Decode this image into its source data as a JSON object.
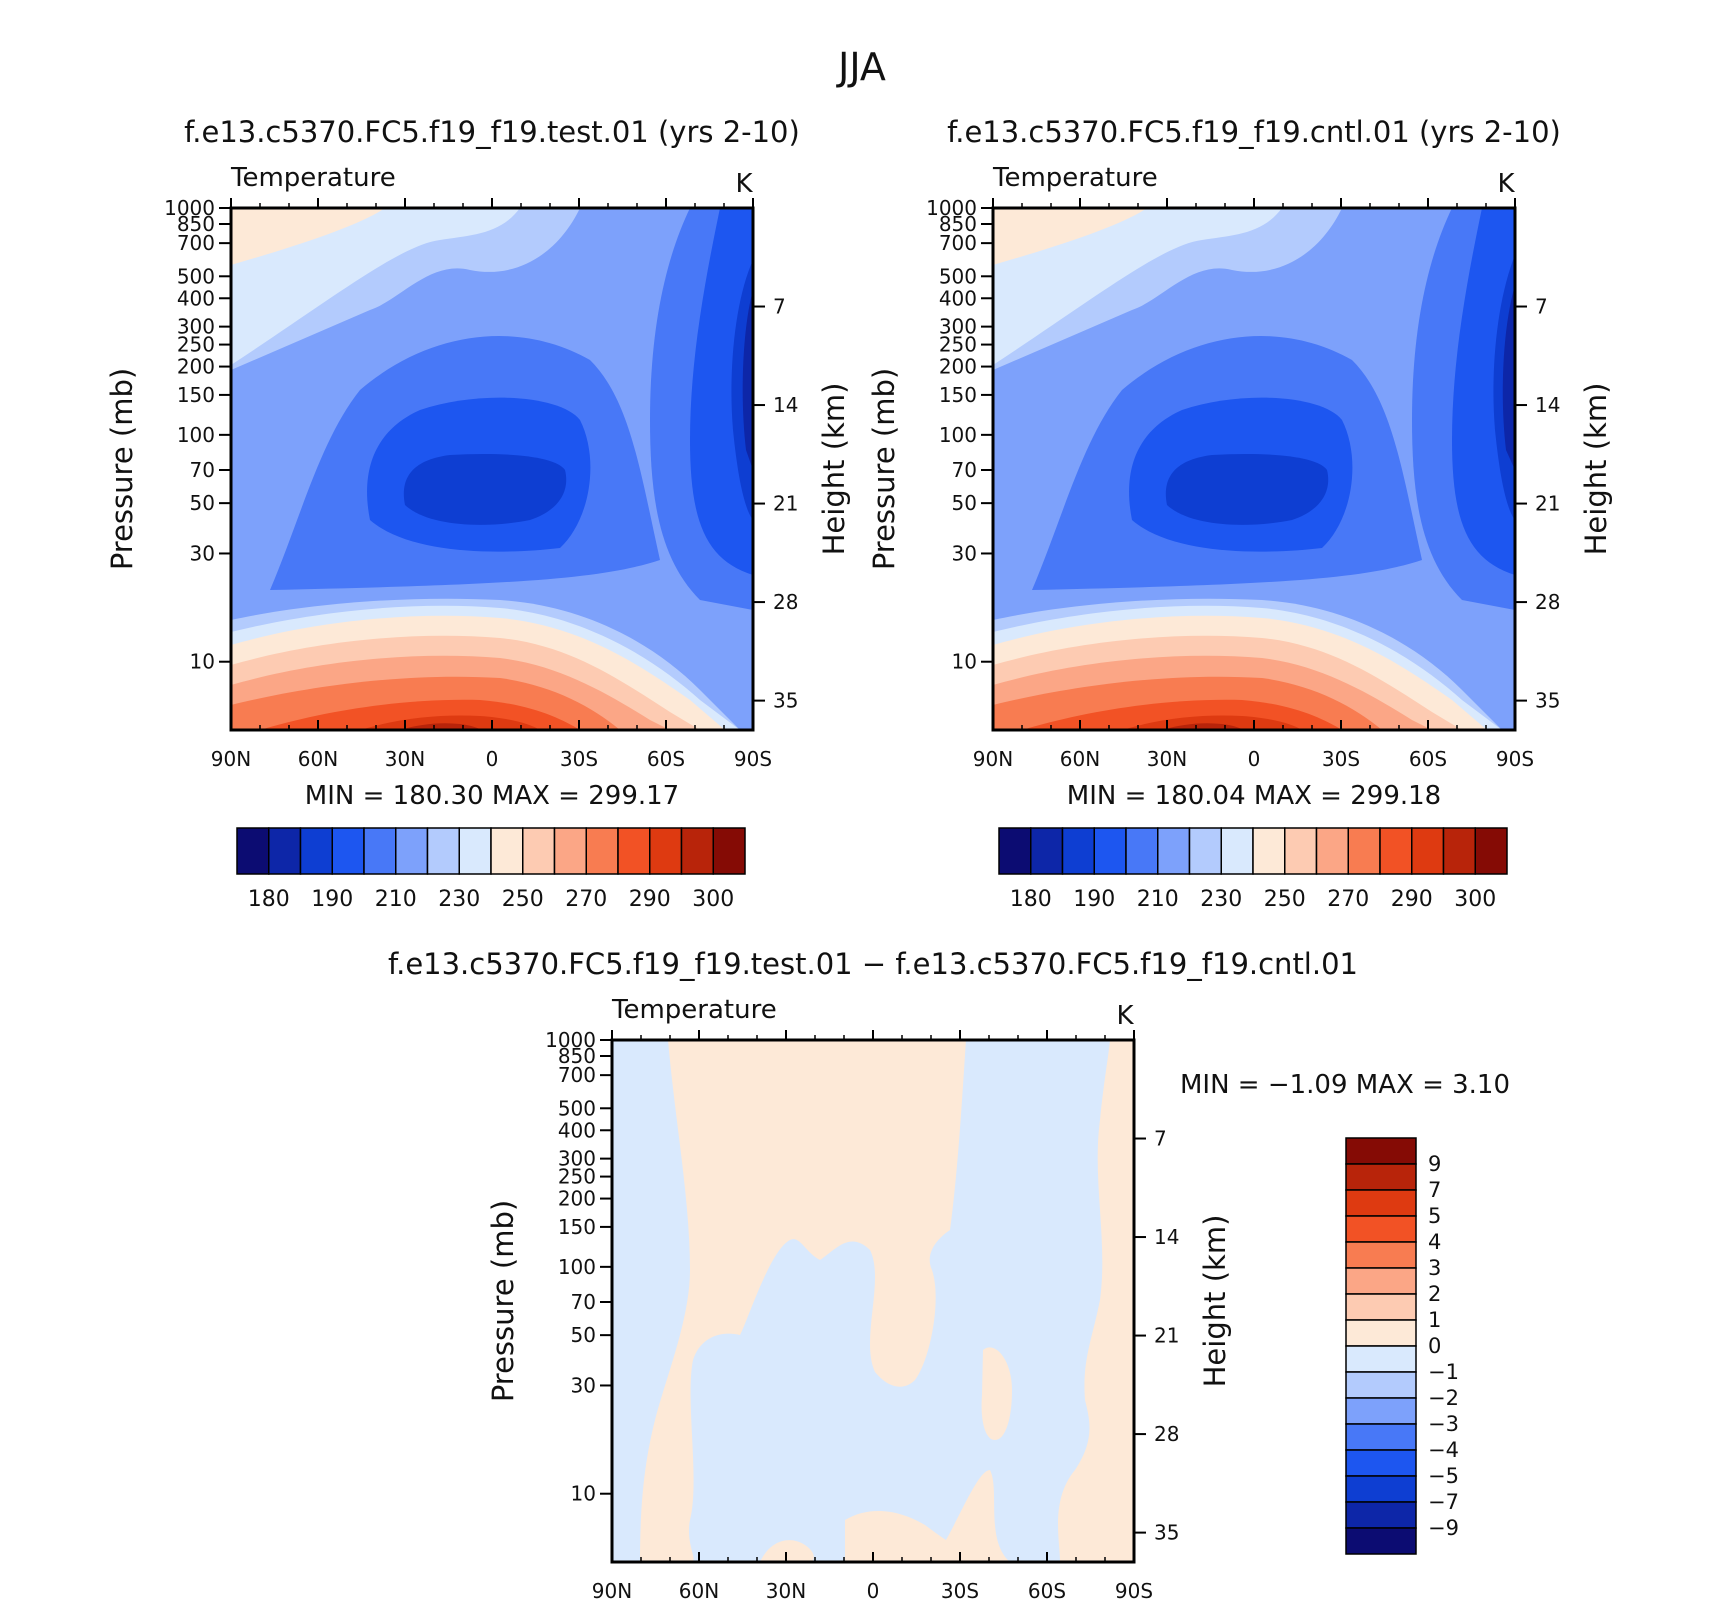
{
  "figure": {
    "title": "JJA"
  },
  "colors": {
    "abs_palette": [
      "#0c0c72",
      "#0d26a8",
      "#0e3ed2",
      "#1d56f0",
      "#4878f7",
      "#7da1fb",
      "#b3cbfd",
      "#d9e9fd",
      "#fde9d7",
      "#fdcbb2",
      "#fba686",
      "#f87c51",
      "#f25225",
      "#de3a11",
      "#b8240a",
      "#850b05"
    ],
    "diff_palette": [
      "#0c0c72",
      "#0d26a8",
      "#0e3ed2",
      "#1d56f0",
      "#4878f7",
      "#7da1fb",
      "#b3cbfd",
      "#d9e9fd",
      "#fde9d7",
      "#fdcbb2",
      "#fba686",
      "#f87c51",
      "#f25225",
      "#de3a11",
      "#b8240a",
      "#850b05"
    ]
  },
  "chart_data": [
    {
      "type": "heatmap",
      "title": "f.e13.c5370.FC5.f19_f19.test.01 (yrs 2-10)",
      "field": "Temperature",
      "units": "K",
      "xlabel": "",
      "ylabel": "Pressure (mb)",
      "y2label": "Height (km)",
      "x_ticks": [
        "90N",
        "60N",
        "30N",
        "0",
        "30S",
        "60S",
        "90S"
      ],
      "y_ticks": [
        10,
        30,
        50,
        70,
        100,
        150,
        200,
        250,
        300,
        400,
        500,
        700,
        850,
        1000
      ],
      "y2_ticks": [
        35,
        28,
        21,
        14,
        7
      ],
      "ylim": [
        1000,
        5
      ],
      "y_scale": "log",
      "stats": "MIN = 180.30 MAX = 299.17",
      "min": 180.3,
      "max": 299.17,
      "colorbar": {
        "orientation": "horizontal",
        "labels": [
          "180",
          "190",
          "210",
          "230",
          "250",
          "270",
          "290",
          "300"
        ]
      },
      "levels": [
        175,
        180,
        185,
        190,
        200,
        210,
        220,
        230,
        240,
        250,
        260,
        270,
        280,
        290,
        295,
        300
      ]
    },
    {
      "type": "heatmap",
      "title": "f.e13.c5370.FC5.f19_f19.cntl.01 (yrs 2-10)",
      "field": "Temperature",
      "units": "K",
      "xlabel": "",
      "ylabel": "Pressure (mb)",
      "y2label": "Height (km)",
      "x_ticks": [
        "90N",
        "60N",
        "30N",
        "0",
        "30S",
        "60S",
        "90S"
      ],
      "y_ticks": [
        10,
        30,
        50,
        70,
        100,
        150,
        200,
        250,
        300,
        400,
        500,
        700,
        850,
        1000
      ],
      "y2_ticks": [
        35,
        28,
        21,
        14,
        7
      ],
      "ylim": [
        1000,
        5
      ],
      "y_scale": "log",
      "stats": "MIN = 180.04 MAX = 299.18",
      "min": 180.04,
      "max": 299.18,
      "colorbar": {
        "orientation": "horizontal",
        "labels": [
          "180",
          "190",
          "210",
          "230",
          "250",
          "270",
          "290",
          "300"
        ]
      },
      "levels": [
        175,
        180,
        185,
        190,
        200,
        210,
        220,
        230,
        240,
        250,
        260,
        270,
        280,
        290,
        295,
        300
      ]
    },
    {
      "type": "heatmap",
      "title": "f.e13.c5370.FC5.f19_f19.test.01 − f.e13.c5370.FC5.f19_f19.cntl.01",
      "field": "Temperature",
      "units": "K",
      "xlabel": "",
      "ylabel": "Pressure (mb)",
      "y2label": "Height (km)",
      "x_ticks": [
        "90N",
        "60N",
        "30N",
        "0",
        "30S",
        "60S",
        "90S"
      ],
      "y_ticks": [
        10,
        30,
        50,
        70,
        100,
        150,
        200,
        250,
        300,
        400,
        500,
        700,
        850,
        1000
      ],
      "y2_ticks": [
        35,
        28,
        21,
        14,
        7
      ],
      "ylim": [
        1000,
        5
      ],
      "y_scale": "log",
      "stats": "MIN = −1.09 MAX = 3.10",
      "min": -1.09,
      "max": 3.1,
      "colorbar": {
        "orientation": "vertical",
        "labels": [
          "9",
          "7",
          "5",
          "4",
          "3",
          "2",
          "1",
          "0",
          "−1",
          "−2",
          "−3",
          "−4",
          "−5",
          "−7",
          "−9"
        ]
      }
    }
  ]
}
